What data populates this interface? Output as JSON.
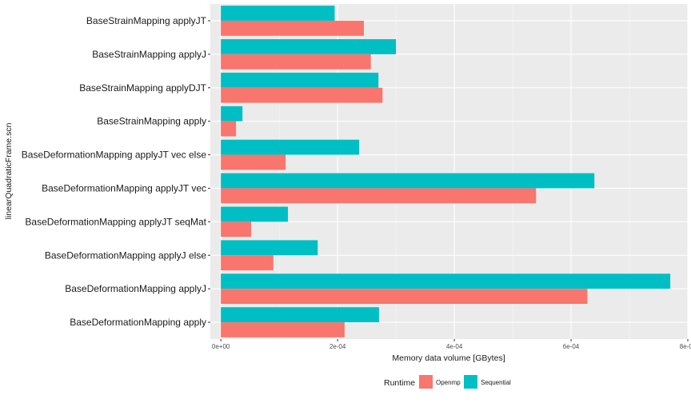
{
  "chart_data": {
    "type": "bar",
    "orientation": "horizontal",
    "categories": [
      "BaseStrainMapping applyJT",
      "BaseStrainMapping applyJ",
      "BaseStrainMapping applyDJT",
      "BaseStrainMapping apply",
      "BaseDeformationMapping applyJT vec else",
      "BaseDeformationMapping applyJT vec",
      "BaseDeformationMapping applyJT seqMat",
      "BaseDeformationMapping applyJ else",
      "BaseDeformationMapping applyJ",
      "BaseDeformationMapping apply"
    ],
    "series": [
      {
        "name": "Sequential",
        "color": "#00BFC4",
        "values": [
          0.000195,
          0.0003,
          0.00027,
          3.7e-05,
          0.000237,
          0.00064,
          0.000115,
          0.000166,
          0.00077,
          0.000271
        ]
      },
      {
        "name": "Openmp",
        "color": "#F8766D",
        "values": [
          0.000245,
          0.000257,
          0.000277,
          2.6e-05,
          0.000111,
          0.00054,
          5.2e-05,
          9e-05,
          0.000628,
          0.000212
        ]
      }
    ],
    "xlabel": "Memory data volume [GBytes]",
    "ylabel": "linearQuadraticFrame.scn",
    "xlim": [
      -1.8e-05,
      0.0008
    ],
    "xticks": [
      0,
      0.0002,
      0.0004,
      0.0006,
      0.0008
    ],
    "xtick_labels": [
      "0e+00",
      "2e-04",
      "4e-04",
      "6e-04",
      "8e-04"
    ],
    "grid": true,
    "legend": {
      "title": "Runtime",
      "placement": "bottom",
      "entries": [
        {
          "label": "Openmp",
          "color": "#F8766D"
        },
        {
          "label": "Sequential",
          "color": "#00BFC4"
        }
      ]
    },
    "panel_background": "#EBEBEB"
  }
}
